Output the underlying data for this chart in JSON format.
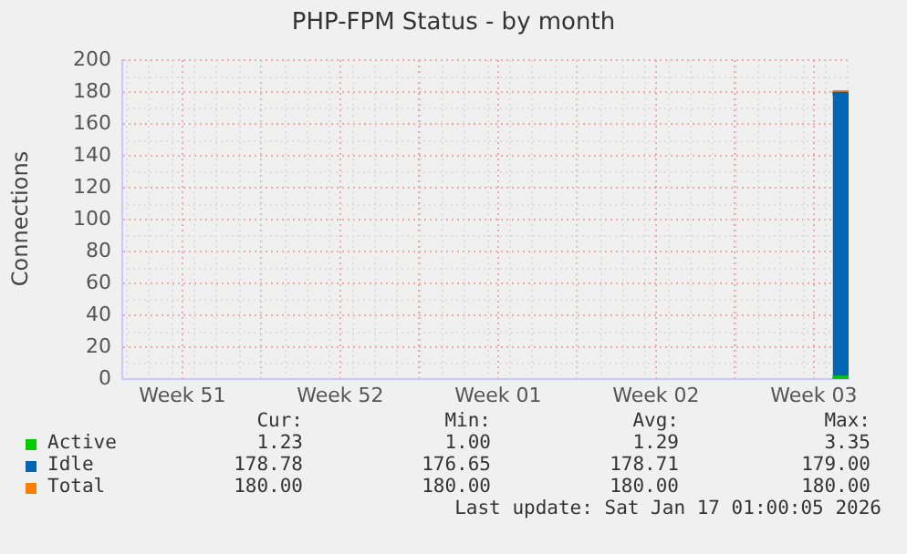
{
  "chart_data": {
    "type": "area",
    "title": "PHP-FPM Status - by month",
    "ylabel": "Connections",
    "xlim": [
      "2025-12-15T20:00",
      "2026-01-17T01:00"
    ],
    "xticks": [
      {
        "value": "2025-12-18T12:00",
        "label": "Week 51"
      },
      {
        "value": "2025-12-22",
        "label": null
      },
      {
        "value": "2025-12-25T12:00",
        "label": "Week 52"
      },
      {
        "value": "2025-12-29",
        "label": null
      },
      {
        "value": "2026-01-01T12:00",
        "label": "Week 01"
      },
      {
        "value": "2026-01-05",
        "label": null
      },
      {
        "value": "2026-01-08T12:00",
        "label": "Week 02"
      },
      {
        "value": "2026-01-12",
        "label": null
      },
      {
        "value": "2026-01-15T12:00",
        "label": "Week 03"
      }
    ],
    "ylim": [
      0,
      200
    ],
    "yticks": [
      0,
      20,
      40,
      60,
      80,
      100,
      120,
      140,
      160,
      180,
      200
    ],
    "grid": true,
    "legend": "bottom",
    "series": [
      {
        "name": "Active",
        "color": "#00cc00",
        "x": [
          "2026-01-16T08:00",
          "2026-01-17T01:00"
        ],
        "values": [
          1,
          1
        ]
      },
      {
        "name": "Idle",
        "color": "#0066b3",
        "x": [
          "2026-01-16T08:00",
          "2026-01-17T01:00"
        ],
        "values": [
          179,
          179
        ]
      },
      {
        "name": "Total",
        "color": "#ff8000",
        "type": "line",
        "x": [
          "2026-01-16T08:00",
          "2026-01-17T01:00"
        ],
        "values": [
          180,
          180
        ]
      }
    ],
    "annotations": [
      "Cur:",
      "Min:",
      "Avg:",
      "Max:",
      "1.23",
      "1.00",
      "1.29",
      "3.35",
      "178.78",
      "176.65",
      "178.71",
      "179.00",
      "180.00",
      "180.00",
      "180.00",
      "180.00",
      "Last update: Sat Jan 17 01:00:05 2026"
    ]
  }
}
